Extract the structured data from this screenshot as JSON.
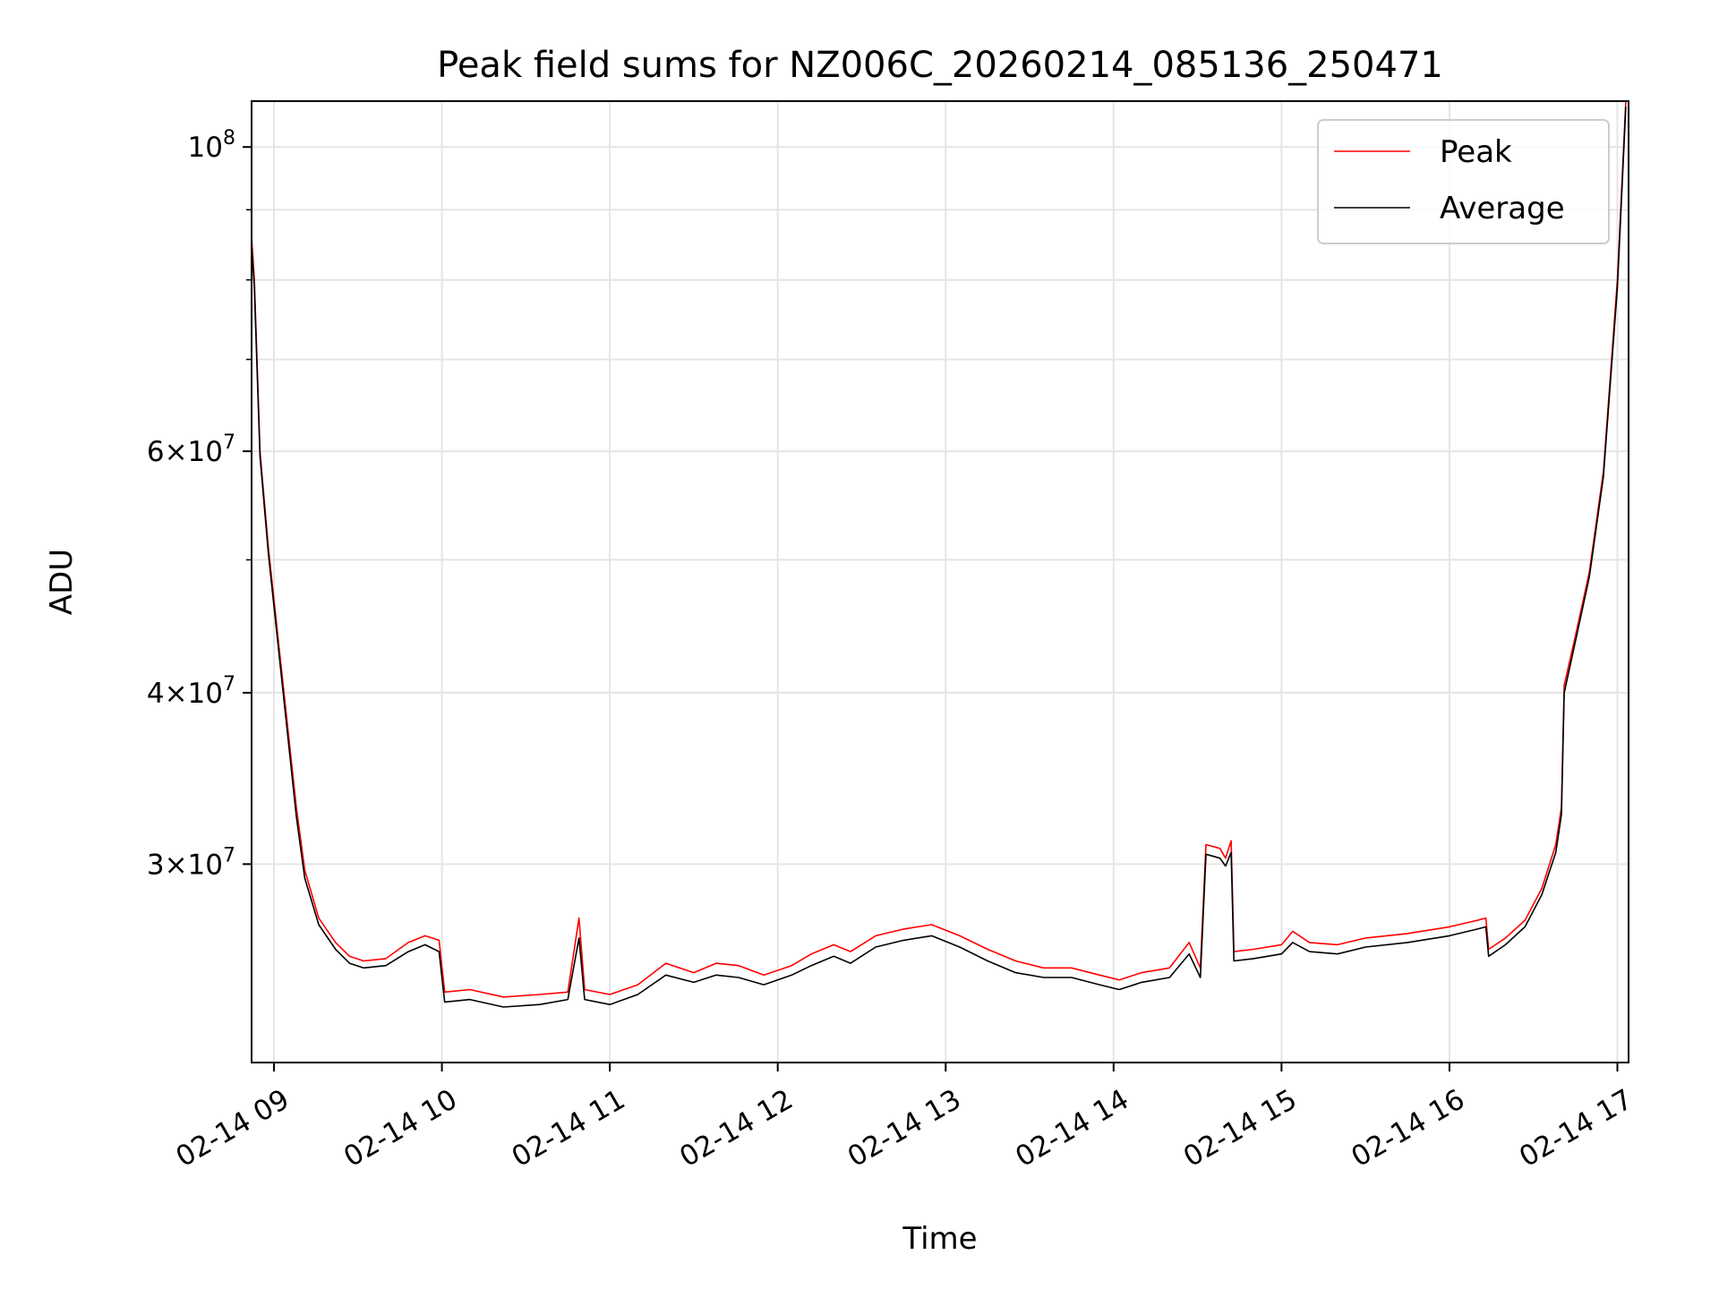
{
  "chart_data": {
    "type": "line",
    "title": "Peak field sums for NZ006C_20260214_085136_250471",
    "xlabel": "Time",
    "ylabel": "ADU",
    "y_scale": "log",
    "grid": true,
    "legend_position": "top-right",
    "xlim": [
      "2026-02-14T08:52",
      "2026-02-14T17:04"
    ],
    "ylim": [
      21500000,
      108000000
    ],
    "x_ticks": [
      {
        "value": "2026-02-14T09:00",
        "label": "02-14 09"
      },
      {
        "value": "2026-02-14T10:00",
        "label": "02-14 10"
      },
      {
        "value": "2026-02-14T11:00",
        "label": "02-14 11"
      },
      {
        "value": "2026-02-14T12:00",
        "label": "02-14 12"
      },
      {
        "value": "2026-02-14T13:00",
        "label": "02-14 13"
      },
      {
        "value": "2026-02-14T14:00",
        "label": "02-14 14"
      },
      {
        "value": "2026-02-14T15:00",
        "label": "02-14 15"
      },
      {
        "value": "2026-02-14T16:00",
        "label": "02-14 16"
      },
      {
        "value": "2026-02-14T17:00",
        "label": "02-14 17"
      }
    ],
    "y_ticks": [
      {
        "value": 100000000,
        "base": "10",
        "exp": "8",
        "coef": ""
      },
      {
        "value": 60000000,
        "base": "10",
        "exp": "7",
        "coef": "6"
      },
      {
        "value": 40000000,
        "base": "10",
        "exp": "7",
        "coef": "4"
      },
      {
        "value": 30000000,
        "base": "10",
        "exp": "7",
        "coef": "3"
      }
    ],
    "y_minor_ticks": [
      50000000,
      70000000,
      80000000,
      90000000
    ],
    "series": [
      {
        "name": "Peak",
        "color": "#ff0000",
        "points": [
          [
            "2026-02-14T08:52",
            86000000
          ],
          [
            "2026-02-14T08:53",
            80000000
          ],
          [
            "2026-02-14T08:55",
            60000000
          ],
          [
            "2026-02-14T08:58",
            51000000
          ],
          [
            "2026-02-14T09:03",
            41000000
          ],
          [
            "2026-02-14T09:08",
            33000000
          ],
          [
            "2026-02-14T09:11",
            29700000
          ],
          [
            "2026-02-14T09:16",
            27400000
          ],
          [
            "2026-02-14T09:22",
            26300000
          ],
          [
            "2026-02-14T09:27",
            25700000
          ],
          [
            "2026-02-14T09:32",
            25500000
          ],
          [
            "2026-02-14T09:40",
            25600000
          ],
          [
            "2026-02-14T09:48",
            26300000
          ],
          [
            "2026-02-14T09:54",
            26600000
          ],
          [
            "2026-02-14T09:59",
            26400000
          ],
          [
            "2026-02-14T10:01",
            24200000
          ],
          [
            "2026-02-14T10:10",
            24300000
          ],
          [
            "2026-02-14T10:22",
            24000000
          ],
          [
            "2026-02-14T10:35",
            24100000
          ],
          [
            "2026-02-14T10:45",
            24200000
          ],
          [
            "2026-02-14T10:49",
            27400000
          ],
          [
            "2026-02-14T10:51",
            24300000
          ],
          [
            "2026-02-14T11:00",
            24100000
          ],
          [
            "2026-02-14T11:10",
            24500000
          ],
          [
            "2026-02-14T11:20",
            25400000
          ],
          [
            "2026-02-14T11:30",
            25000000
          ],
          [
            "2026-02-14T11:38",
            25400000
          ],
          [
            "2026-02-14T11:46",
            25300000
          ],
          [
            "2026-02-14T11:55",
            24900000
          ],
          [
            "2026-02-14T12:05",
            25300000
          ],
          [
            "2026-02-14T12:12",
            25800000
          ],
          [
            "2026-02-14T12:20",
            26200000
          ],
          [
            "2026-02-14T12:26",
            25900000
          ],
          [
            "2026-02-14T12:35",
            26600000
          ],
          [
            "2026-02-14T12:45",
            26900000
          ],
          [
            "2026-02-14T12:55",
            27100000
          ],
          [
            "2026-02-14T13:05",
            26600000
          ],
          [
            "2026-02-14T13:15",
            26000000
          ],
          [
            "2026-02-14T13:25",
            25500000
          ],
          [
            "2026-02-14T13:35",
            25200000
          ],
          [
            "2026-02-14T13:45",
            25200000
          ],
          [
            "2026-02-14T13:55",
            24900000
          ],
          [
            "2026-02-14T14:02",
            24700000
          ],
          [
            "2026-02-14T14:10",
            25000000
          ],
          [
            "2026-02-14T14:20",
            25200000
          ],
          [
            "2026-02-14T14:27",
            26300000
          ],
          [
            "2026-02-14T14:31",
            25200000
          ],
          [
            "2026-02-14T14:33",
            31000000
          ],
          [
            "2026-02-14T14:38",
            30800000
          ],
          [
            "2026-02-14T14:40",
            30300000
          ],
          [
            "2026-02-14T14:42",
            31200000
          ],
          [
            "2026-02-14T14:43",
            25900000
          ],
          [
            "2026-02-14T14:50",
            26000000
          ],
          [
            "2026-02-14T15:00",
            26200000
          ],
          [
            "2026-02-14T15:04",
            26800000
          ],
          [
            "2026-02-14T15:10",
            26300000
          ],
          [
            "2026-02-14T15:20",
            26200000
          ],
          [
            "2026-02-14T15:30",
            26500000
          ],
          [
            "2026-02-14T15:45",
            26700000
          ],
          [
            "2026-02-14T16:00",
            27000000
          ],
          [
            "2026-02-14T16:10",
            27300000
          ],
          [
            "2026-02-14T16:13",
            27400000
          ],
          [
            "2026-02-14T16:14",
            26000000
          ],
          [
            "2026-02-14T16:20",
            26500000
          ],
          [
            "2026-02-14T16:27",
            27300000
          ],
          [
            "2026-02-14T16:33",
            28800000
          ],
          [
            "2026-02-14T16:38",
            31000000
          ],
          [
            "2026-02-14T16:40",
            33000000
          ],
          [
            "2026-02-14T16:41",
            40500000
          ],
          [
            "2026-02-14T16:45",
            44000000
          ],
          [
            "2026-02-14T16:50",
            49000000
          ],
          [
            "2026-02-14T16:55",
            58000000
          ],
          [
            "2026-02-14T17:00",
            80000000
          ],
          [
            "2026-02-14T17:03",
            108000000
          ]
        ]
      },
      {
        "name": "Average",
        "color": "#000000",
        "points": [
          [
            "2026-02-14T08:52",
            85000000
          ],
          [
            "2026-02-14T08:53",
            79000000
          ],
          [
            "2026-02-14T08:55",
            59500000
          ],
          [
            "2026-02-14T08:58",
            50500000
          ],
          [
            "2026-02-14T09:03",
            40500000
          ],
          [
            "2026-02-14T09:08",
            32500000
          ],
          [
            "2026-02-14T09:11",
            29300000
          ],
          [
            "2026-02-14T09:16",
            27100000
          ],
          [
            "2026-02-14T09:22",
            26000000
          ],
          [
            "2026-02-14T09:27",
            25400000
          ],
          [
            "2026-02-14T09:32",
            25200000
          ],
          [
            "2026-02-14T09:40",
            25300000
          ],
          [
            "2026-02-14T09:48",
            25900000
          ],
          [
            "2026-02-14T09:54",
            26200000
          ],
          [
            "2026-02-14T09:59",
            25900000
          ],
          [
            "2026-02-14T10:01",
            23800000
          ],
          [
            "2026-02-14T10:10",
            23900000
          ],
          [
            "2026-02-14T10:22",
            23600000
          ],
          [
            "2026-02-14T10:35",
            23700000
          ],
          [
            "2026-02-14T10:45",
            23900000
          ],
          [
            "2026-02-14T10:49",
            26500000
          ],
          [
            "2026-02-14T10:51",
            23900000
          ],
          [
            "2026-02-14T11:00",
            23700000
          ],
          [
            "2026-02-14T11:10",
            24100000
          ],
          [
            "2026-02-14T11:20",
            24900000
          ],
          [
            "2026-02-14T11:30",
            24600000
          ],
          [
            "2026-02-14T11:38",
            24900000
          ],
          [
            "2026-02-14T11:46",
            24800000
          ],
          [
            "2026-02-14T11:55",
            24500000
          ],
          [
            "2026-02-14T12:05",
            24900000
          ],
          [
            "2026-02-14T12:12",
            25300000
          ],
          [
            "2026-02-14T12:20",
            25700000
          ],
          [
            "2026-02-14T12:26",
            25400000
          ],
          [
            "2026-02-14T12:35",
            26100000
          ],
          [
            "2026-02-14T12:45",
            26400000
          ],
          [
            "2026-02-14T12:55",
            26600000
          ],
          [
            "2026-02-14T13:05",
            26100000
          ],
          [
            "2026-02-14T13:15",
            25500000
          ],
          [
            "2026-02-14T13:25",
            25000000
          ],
          [
            "2026-02-14T13:35",
            24800000
          ],
          [
            "2026-02-14T13:45",
            24800000
          ],
          [
            "2026-02-14T13:55",
            24500000
          ],
          [
            "2026-02-14T14:02",
            24300000
          ],
          [
            "2026-02-14T14:10",
            24600000
          ],
          [
            "2026-02-14T14:20",
            24800000
          ],
          [
            "2026-02-14T14:27",
            25800000
          ],
          [
            "2026-02-14T14:31",
            24800000
          ],
          [
            "2026-02-14T14:33",
            30500000
          ],
          [
            "2026-02-14T14:38",
            30300000
          ],
          [
            "2026-02-14T14:40",
            29900000
          ],
          [
            "2026-02-14T14:42",
            30600000
          ],
          [
            "2026-02-14T14:43",
            25500000
          ],
          [
            "2026-02-14T14:50",
            25600000
          ],
          [
            "2026-02-14T15:00",
            25800000
          ],
          [
            "2026-02-14T15:04",
            26300000
          ],
          [
            "2026-02-14T15:10",
            25900000
          ],
          [
            "2026-02-14T15:20",
            25800000
          ],
          [
            "2026-02-14T15:30",
            26100000
          ],
          [
            "2026-02-14T15:45",
            26300000
          ],
          [
            "2026-02-14T16:00",
            26600000
          ],
          [
            "2026-02-14T16:10",
            26900000
          ],
          [
            "2026-02-14T16:13",
            27000000
          ],
          [
            "2026-02-14T16:14",
            25700000
          ],
          [
            "2026-02-14T16:20",
            26200000
          ],
          [
            "2026-02-14T16:27",
            27000000
          ],
          [
            "2026-02-14T16:33",
            28500000
          ],
          [
            "2026-02-14T16:38",
            30600000
          ],
          [
            "2026-02-14T16:40",
            32600000
          ],
          [
            "2026-02-14T16:41",
            40000000
          ],
          [
            "2026-02-14T16:45",
            43600000
          ],
          [
            "2026-02-14T16:50",
            48600000
          ],
          [
            "2026-02-14T16:55",
            57500000
          ],
          [
            "2026-02-14T17:00",
            79000000
          ],
          [
            "2026-02-14T17:03",
            107000000
          ]
        ]
      }
    ]
  }
}
